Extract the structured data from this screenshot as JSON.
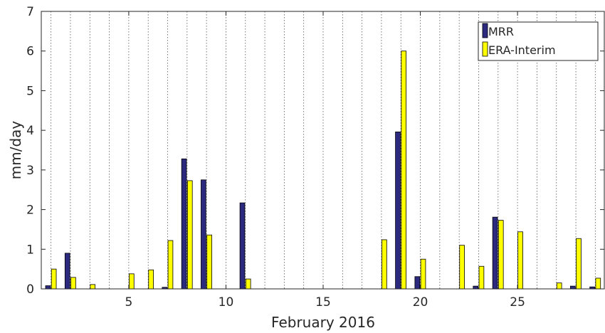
{
  "chart_data": {
    "type": "bar",
    "xlabel": "February 2016",
    "ylabel": "mm/day",
    "xlim": [
      0.5,
      29.5
    ],
    "ylim": [
      0,
      7
    ],
    "x": [
      1,
      2,
      3,
      4,
      5,
      6,
      7,
      8,
      9,
      10,
      11,
      12,
      13,
      14,
      15,
      16,
      17,
      18,
      19,
      20,
      21,
      22,
      23,
      24,
      25,
      26,
      27,
      28,
      29
    ],
    "x_ticks": [
      5,
      10,
      15,
      20,
      25
    ],
    "y_ticks": [
      0,
      1,
      2,
      3,
      4,
      5,
      6,
      7
    ],
    "grid": "vertical dotted lines at each day",
    "legend_position": "top-right",
    "series": [
      {
        "name": "MRR",
        "color": "#2b2a7f",
        "values": [
          0.08,
          0.9,
          0,
          0,
          0,
          0,
          0.04,
          3.28,
          2.75,
          0,
          2.17,
          0,
          0,
          0,
          0,
          0,
          0,
          0,
          3.96,
          0.31,
          0,
          0,
          0.07,
          1.81,
          0,
          0,
          0,
          0.07,
          0.05
        ]
      },
      {
        "name": "ERA-Interim",
        "color": "#ffff00",
        "values": [
          0.5,
          0.29,
          0.11,
          0,
          0.38,
          0.48,
          1.22,
          2.73,
          1.36,
          0,
          0.25,
          0,
          0,
          0,
          0,
          0,
          0,
          1.24,
          6.0,
          0.75,
          0,
          1.1,
          0.57,
          1.73,
          1.44,
          0,
          0.15,
          1.27,
          0.27
        ]
      }
    ]
  }
}
